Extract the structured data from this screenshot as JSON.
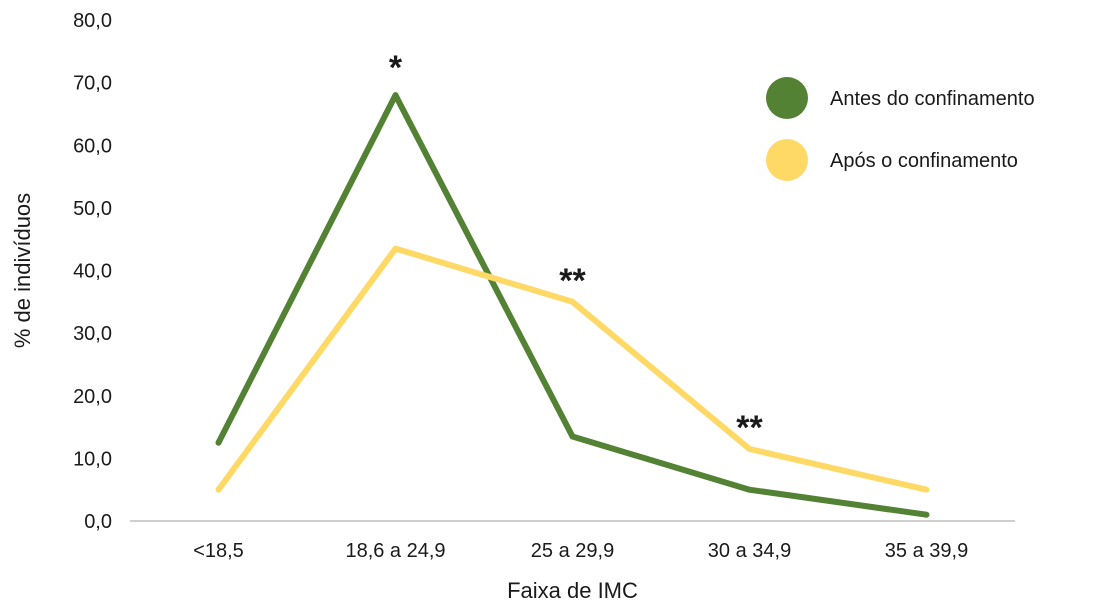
{
  "chart_data": {
    "type": "line",
    "title": "",
    "xlabel": "Faixa de IMC",
    "ylabel": "% de indivíduos",
    "categories": [
      "<18,5",
      "18,6 a 24,9",
      "25 a 29,9",
      "30 a 34,9",
      "35 a 39,9"
    ],
    "ylim": [
      0,
      80
    ],
    "yticks": [
      "0,0",
      "10,0",
      "20,0",
      "30,0",
      "40,0",
      "50,0",
      "60,0",
      "70,0",
      "80,0"
    ],
    "grid": false,
    "legend_position": "top-right",
    "series": [
      {
        "name": "Antes do confinamento",
        "color": "#548235",
        "values": [
          12.5,
          68.0,
          13.5,
          5.0,
          1.0
        ]
      },
      {
        "name": "Após o confinamento",
        "color": "#FFD966",
        "values": [
          5.0,
          43.5,
          35.0,
          11.5,
          5.0
        ]
      }
    ],
    "annotations": [
      {
        "text": "*",
        "category": "18,6 a 24,9",
        "y": 72.5
      },
      {
        "text": "**",
        "category": "25 a 29,9",
        "y": 38.5
      },
      {
        "text": "**",
        "category": "30 a 34,9",
        "y": 15.0
      }
    ]
  }
}
